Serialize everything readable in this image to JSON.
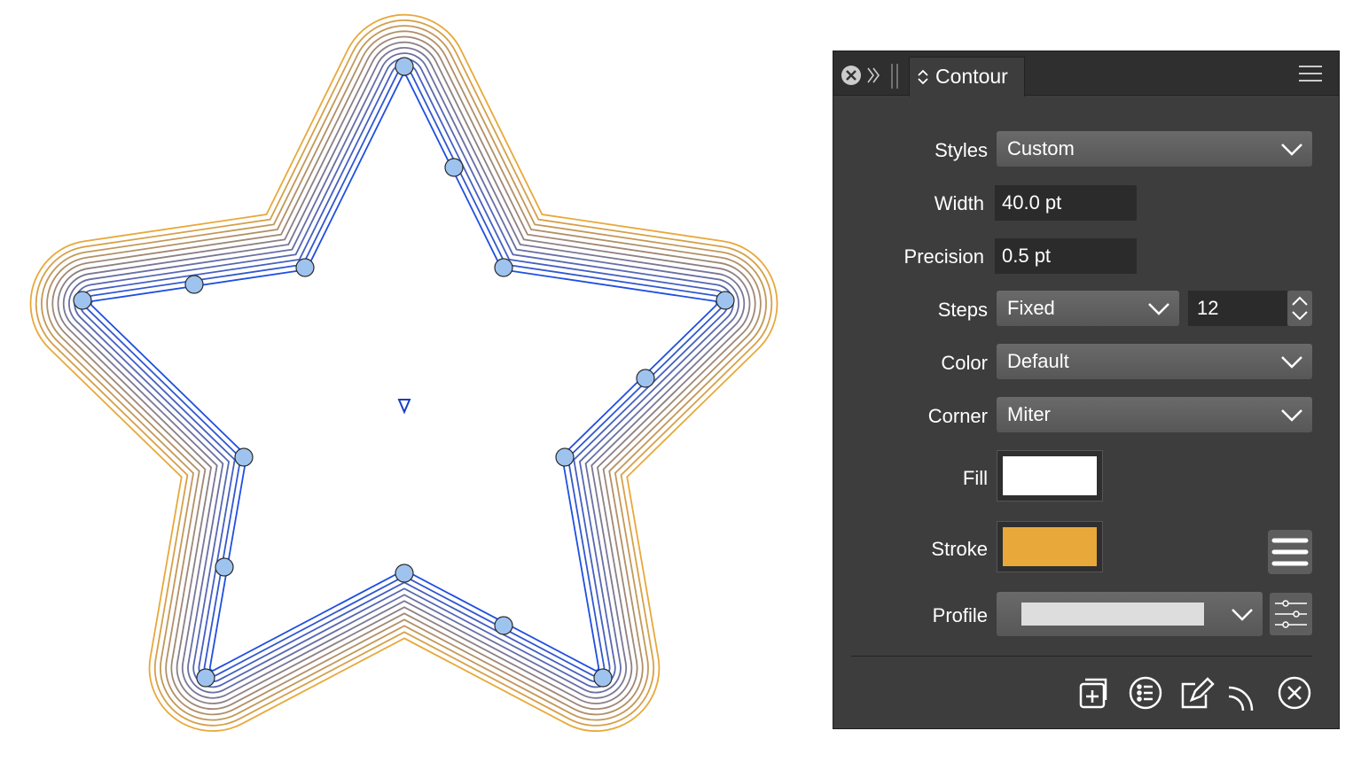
{
  "panel": {
    "tab": "Contour",
    "fields": [
      {
        "label": "Styles",
        "value": "Custom"
      },
      {
        "label": "Width",
        "value": "40.0 pt"
      },
      {
        "label": "Precision",
        "value": "0.5 pt"
      },
      {
        "label": "Steps",
        "value": "Fixed",
        "count": "12"
      },
      {
        "label": "Color",
        "value": "Default"
      },
      {
        "label": "Corner",
        "value": "Miter"
      },
      {
        "label": "Fill"
      },
      {
        "label": "Stroke"
      },
      {
        "label": "Profile"
      }
    ]
  }
}
